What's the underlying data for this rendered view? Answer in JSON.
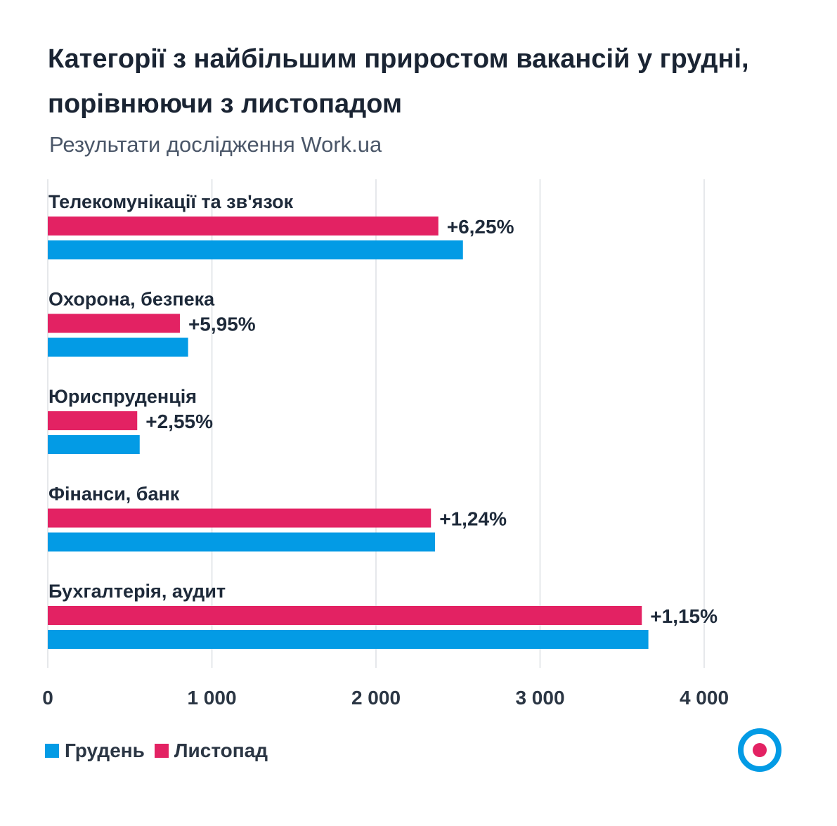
{
  "header": {
    "title": "Категорії з найбільшим приростом вакансій у грудні, порівнюючи з листопадом",
    "subtitle": "Результати дослідження Work.ua"
  },
  "colors": {
    "december": "#039be5",
    "november": "#e32263",
    "grid": "#e6e8eb"
  },
  "chart_data": {
    "type": "bar",
    "orientation": "horizontal",
    "categories": [
      "Телекомунікації та зв'язок",
      "Охорона, безпека",
      "Юриспруденція",
      "Фінанси, банк",
      "Бухгалтерія, аудит"
    ],
    "series": [
      {
        "name": "Листопад",
        "color": "#e32263",
        "values": [
          2380,
          805,
          545,
          2335,
          3620
        ]
      },
      {
        "name": "Грудень",
        "color": "#039be5",
        "values": [
          2530,
          855,
          560,
          2360,
          3660
        ]
      }
    ],
    "growth_labels": [
      "+6,25%",
      "+5,95%",
      "+2,55%",
      "+1,24%",
      "+1,15%"
    ],
    "xlim": [
      0,
      4000
    ],
    "xticks": [
      0,
      1000,
      2000,
      3000,
      4000
    ],
    "xtick_labels": [
      "0",
      "1 000",
      "2 000",
      "3 000",
      "4 000"
    ],
    "grid": true,
    "legend_position": "bottom-left"
  },
  "legend": [
    {
      "label": "Грудень",
      "color": "#039be5"
    },
    {
      "label": "Листопад",
      "color": "#e32263"
    }
  ],
  "logo_icon": "work-ua-target-icon"
}
